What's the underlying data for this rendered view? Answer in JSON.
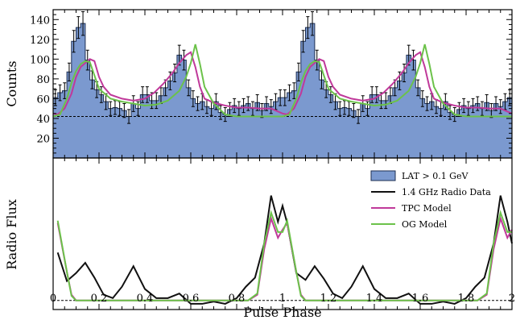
{
  "chart_data": {
    "type": "step-histogram+line",
    "xlabel": "Pulse Phase",
    "xlim": [
      0,
      2
    ],
    "x_ticks": [
      "0",
      "0.2",
      "0.4",
      "0.6",
      "0.8",
      "1",
      "1.2",
      "1.4",
      "1.6",
      "1.8",
      "2"
    ],
    "panels": [
      {
        "name": "top",
        "ylabel": "Counts",
        "ylim": [
          0,
          150
        ],
        "y_ticks": [
          "20",
          "40",
          "60",
          "80",
          "100",
          "120",
          "140"
        ],
        "background_level": 42,
        "histogram": {
          "bin_width": 0.02,
          "values": [
            61,
            66,
            68,
            87,
            118,
            132,
            136,
            99,
            79,
            69,
            64,
            57,
            50,
            51,
            50,
            48,
            42,
            55,
            50,
            64,
            64,
            58,
            58,
            63,
            71,
            78,
            86,
            104,
            99,
            71,
            60,
            55,
            57,
            52,
            50,
            57,
            46,
            44,
            49,
            53,
            50,
            53,
            55,
            50,
            56,
            48,
            55,
            52,
            57,
            61,
            61,
            66,
            68,
            87,
            118,
            132,
            136,
            99,
            79,
            69,
            64,
            57,
            50,
            51,
            50,
            48,
            42,
            55,
            50,
            64,
            64,
            58,
            58,
            63,
            71,
            78,
            86,
            104,
            99,
            71,
            60,
            55,
            57,
            52,
            50,
            57,
            46,
            44,
            49,
            53,
            50,
            53,
            55,
            50,
            56,
            48,
            55,
            52,
            57,
            61
          ],
          "errors": [
            8,
            8,
            8,
            9,
            11,
            11,
            12,
            10,
            9,
            8,
            8,
            8,
            7,
            7,
            7,
            7,
            7,
            8,
            7,
            8,
            8,
            8,
            8,
            8,
            8,
            9,
            9,
            10,
            10,
            8,
            8,
            7,
            8,
            7,
            7,
            8,
            7,
            7,
            7,
            7,
            7,
            7,
            7,
            7,
            8,
            7,
            7,
            7,
            8,
            8,
            8,
            8,
            8,
            9,
            11,
            11,
            12,
            10,
            9,
            8,
            8,
            8,
            7,
            7,
            7,
            7,
            7,
            8,
            7,
            8,
            8,
            8,
            8,
            8,
            8,
            9,
            9,
            10,
            10,
            8,
            8,
            7,
            8,
            7,
            7,
            8,
            7,
            7,
            7,
            7,
            7,
            7,
            7,
            7,
            8,
            7,
            7,
            7,
            8,
            8
          ]
        },
        "series": [
          {
            "name": "TPC Model",
            "color": "#c0399a",
            "x": [
              0.0,
              0.02,
              0.05,
              0.08,
              0.1,
              0.12,
              0.14,
              0.16,
              0.18,
              0.2,
              0.22,
              0.25,
              0.3,
              0.35,
              0.4,
              0.44,
              0.48,
              0.52,
              0.55,
              0.58,
              0.6,
              0.62,
              0.64,
              0.66,
              0.7,
              0.75,
              0.8,
              0.85,
              0.9,
              0.95,
              1.0,
              1.02,
              1.05,
              1.08,
              1.1,
              1.12,
              1.14,
              1.16,
              1.18,
              1.2,
              1.22,
              1.25,
              1.3,
              1.35,
              1.4,
              1.44,
              1.48,
              1.52,
              1.55,
              1.58,
              1.6,
              1.62,
              1.64,
              1.66,
              1.7,
              1.75,
              1.8,
              1.85,
              1.9,
              1.95,
              2.0
            ],
            "y": [
              45,
              44,
              50,
              65,
              82,
              92,
              96,
              100,
              98,
              82,
              72,
              64,
              60,
              58,
              60,
              66,
              75,
              86,
              96,
              104,
              107,
              92,
              72,
              60,
              56,
              53,
              51,
              51,
              50,
              50,
              45,
              44,
              50,
              65,
              82,
              92,
              96,
              100,
              98,
              82,
              72,
              64,
              60,
              58,
              60,
              66,
              75,
              86,
              96,
              104,
              107,
              92,
              72,
              60,
              56,
              53,
              51,
              51,
              50,
              50,
              45
            ]
          },
          {
            "name": "OG Model",
            "color": "#6cc24a",
            "x": [
              0.0,
              0.03,
              0.06,
              0.08,
              0.1,
              0.12,
              0.14,
              0.16,
              0.2,
              0.25,
              0.3,
              0.35,
              0.4,
              0.45,
              0.5,
              0.55,
              0.58,
              0.6,
              0.62,
              0.64,
              0.66,
              0.7,
              0.75,
              0.8,
              0.85,
              0.9,
              0.95,
              1.0,
              1.03,
              1.06,
              1.08,
              1.1,
              1.12,
              1.14,
              1.16,
              1.2,
              1.25,
              1.3,
              1.35,
              1.4,
              1.45,
              1.5,
              1.55,
              1.58,
              1.6,
              1.62,
              1.64,
              1.66,
              1.7,
              1.75,
              1.8,
              1.85,
              1.9,
              1.95,
              2.0
            ],
            "y": [
              42,
              44,
              60,
              76,
              88,
              95,
              98,
              97,
              70,
              60,
              57,
              55,
              53,
              54,
              58,
              68,
              82,
              96,
              115,
              95,
              72,
              55,
              44,
              42,
              42,
              42,
              42,
              42,
              44,
              60,
              76,
              88,
              95,
              98,
              97,
              70,
              60,
              57,
              55,
              53,
              54,
              58,
              68,
              82,
              96,
              115,
              95,
              72,
              55,
              44,
              42,
              42,
              42,
              42,
              42
            ]
          }
        ]
      },
      {
        "name": "bottom",
        "ylabel": "Radio Flux",
        "baseline": 0,
        "ylim": [
          -0.08,
          1.25
        ],
        "series": [
          {
            "name": "1.4 GHz Radio Data",
            "color": "#111111",
            "x": [
              0.02,
              0.06,
              0.1,
              0.14,
              0.18,
              0.22,
              0.26,
              0.3,
              0.35,
              0.4,
              0.45,
              0.5,
              0.55,
              0.6,
              0.65,
              0.7,
              0.75,
              0.8,
              0.84,
              0.88,
              0.92,
              0.95,
              0.98,
              1.0,
              1.02,
              1.06,
              1.1,
              1.14,
              1.18,
              1.22,
              1.26,
              1.3,
              1.35,
              1.4,
              1.45,
              1.5,
              1.55,
              1.6,
              1.65,
              1.7,
              1.75,
              1.8,
              1.84,
              1.88,
              1.92,
              1.95,
              1.98,
              2.0
            ],
            "y": [
              0.42,
              0.17,
              0.24,
              0.33,
              0.2,
              0.05,
              0.02,
              0.12,
              0.3,
              0.1,
              0.02,
              0.02,
              0.06,
              -0.03,
              -0.03,
              -0.01,
              -0.03,
              0.02,
              0.12,
              0.2,
              0.5,
              0.92,
              0.69,
              0.83,
              0.68,
              0.24,
              0.18,
              0.3,
              0.19,
              0.06,
              0.02,
              0.12,
              0.3,
              0.1,
              0.02,
              0.02,
              0.06,
              -0.03,
              -0.03,
              -0.01,
              -0.03,
              0.02,
              0.12,
              0.2,
              0.5,
              0.92,
              0.69,
              0.5
            ]
          },
          {
            "name": "TPC Model",
            "color": "#c0399a",
            "x": [
              0.02,
              0.06,
              0.08,
              0.1,
              0.85,
              0.89,
              0.92,
              0.95,
              0.98,
              1.0,
              1.02,
              1.06,
              1.08,
              1.1,
              1.85,
              1.89,
              1.92,
              1.95,
              1.98,
              2.0
            ],
            "y": [
              0.68,
              0.25,
              0.05,
              0.0,
              0.0,
              0.05,
              0.45,
              0.72,
              0.55,
              0.62,
              0.68,
              0.25,
              0.05,
              0.0,
              0.0,
              0.05,
              0.45,
              0.72,
              0.55,
              0.62
            ]
          },
          {
            "name": "OG Model",
            "color": "#6cc24a",
            "x": [
              0.02,
              0.06,
              0.08,
              0.1,
              0.85,
              0.89,
              0.92,
              0.95,
              0.98,
              1.0,
              1.02,
              1.06,
              1.08,
              1.1,
              1.85,
              1.89,
              1.92,
              1.95,
              1.98,
              2.0
            ],
            "y": [
              0.7,
              0.25,
              0.04,
              0.0,
              0.0,
              0.06,
              0.5,
              0.77,
              0.6,
              0.6,
              0.7,
              0.25,
              0.04,
              0.0,
              0.0,
              0.06,
              0.5,
              0.77,
              0.6,
              0.6
            ]
          }
        ]
      }
    ],
    "legend": {
      "placement": "top-right of bottom panel",
      "entries": [
        {
          "label": "LAT > 0.1 GeV",
          "kind": "box",
          "color": "#7b99cf"
        },
        {
          "label": "1.4 GHz Radio Data",
          "kind": "line",
          "color": "#111111"
        },
        {
          "label": "TPC Model",
          "kind": "line",
          "color": "#c0399a"
        },
        {
          "label": "OG Model",
          "kind": "line",
          "color": "#6cc24a"
        }
      ]
    },
    "colors": {
      "histogram_fill": "#7b99cf",
      "histogram_edge": "#1c2e52"
    }
  }
}
